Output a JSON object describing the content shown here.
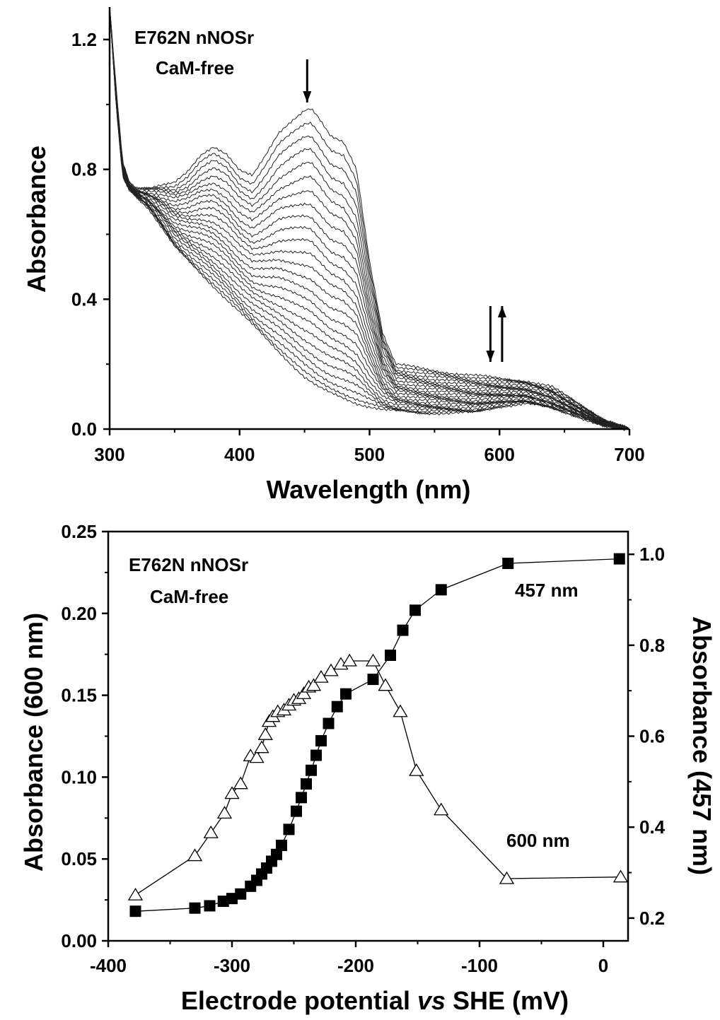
{
  "chart_data": [
    {
      "type": "line",
      "panel": "top",
      "xlabel": "Wavelength (nm)",
      "ylabel": "Absorbance",
      "xlim": [
        300,
        700
      ],
      "ylim": [
        0.0,
        1.3
      ],
      "xticks": [
        "300",
        "400",
        "500",
        "600",
        "700"
      ],
      "yticks": [
        "0.0",
        "0.4",
        "0.8",
        "1.2"
      ],
      "annotations": [
        "E762N nNOSr",
        "CaM-free"
      ],
      "arrows": [
        {
          "x": 452,
          "direction": "down"
        },
        {
          "x": 593,
          "direction": "down"
        },
        {
          "x": 602,
          "direction": "up"
        }
      ],
      "series_count": 25,
      "fully_oxidized_spectrum": {
        "x": [
          300,
          305,
          310,
          315,
          320,
          330,
          340,
          350,
          360,
          370,
          380,
          390,
          400,
          410,
          420,
          430,
          440,
          450,
          455,
          460,
          470,
          480,
          490,
          500,
          510,
          520,
          540,
          560,
          580,
          600,
          620,
          640,
          660,
          680,
          700
        ],
        "y": [
          1.3,
          1.05,
          0.82,
          0.76,
          0.74,
          0.745,
          0.755,
          0.76,
          0.79,
          0.84,
          0.87,
          0.85,
          0.8,
          0.78,
          0.84,
          0.91,
          0.95,
          0.985,
          0.99,
          0.965,
          0.9,
          0.88,
          0.8,
          0.52,
          0.3,
          0.2,
          0.185,
          0.175,
          0.165,
          0.155,
          0.15,
          0.13,
          0.08,
          0.03,
          0.0
        ]
      },
      "fully_reduced_spectrum": {
        "x": [
          300,
          305,
          310,
          315,
          320,
          330,
          340,
          350,
          360,
          370,
          380,
          390,
          400,
          410,
          420,
          430,
          440,
          450,
          460,
          470,
          480,
          490,
          500,
          510,
          520,
          540,
          560,
          580,
          600,
          620,
          640,
          660,
          680,
          700
        ],
        "y": [
          1.3,
          1.0,
          0.78,
          0.74,
          0.72,
          0.68,
          0.62,
          0.56,
          0.52,
          0.48,
          0.44,
          0.4,
          0.36,
          0.32,
          0.28,
          0.24,
          0.2,
          0.16,
          0.13,
          0.11,
          0.095,
          0.08,
          0.07,
          0.06,
          0.055,
          0.05,
          0.05,
          0.05,
          0.07,
          0.08,
          0.065,
          0.04,
          0.01,
          0.0
        ]
      }
    },
    {
      "type": "scatter",
      "panel": "bottom",
      "xlabel_parts": [
        "Electrode potential ",
        "vs",
        " SHE (mV)"
      ],
      "ylabel_left": "Absorbance (600 nm)",
      "ylabel_right": "Absorbance (457 nm)",
      "xlim": [
        -400,
        20
      ],
      "ylim_left": [
        0.0,
        0.25
      ],
      "ylim_right": [
        0.15,
        1.05
      ],
      "xticks": [
        "-400",
        "-300",
        "-200",
        "-100",
        "0"
      ],
      "yticks_left": [
        "0.00",
        "0.05",
        "0.10",
        "0.15",
        "0.20",
        "0.25"
      ],
      "yticks_right": [
        "0.2",
        "0.4",
        "0.6",
        "0.8",
        "1.0"
      ],
      "annotations": [
        "E762N nNOSr",
        "CaM-free"
      ],
      "series": [
        {
          "name": "457 nm",
          "marker": "filled-square",
          "axis": "right",
          "x": [
            -378,
            -330,
            -318,
            -307,
            -300,
            -293,
            -285,
            -280,
            -276,
            -272,
            -268,
            -264,
            -260,
            -254,
            -248,
            -244,
            -240,
            -236,
            -232,
            -228,
            -222,
            -215,
            -208,
            -186,
            -172,
            -162,
            -152,
            -131,
            -77,
            13
          ],
          "y": [
            0.215,
            0.222,
            0.227,
            0.237,
            0.243,
            0.253,
            0.27,
            0.283,
            0.297,
            0.31,
            0.325,
            0.34,
            0.36,
            0.395,
            0.435,
            0.465,
            0.495,
            0.525,
            0.558,
            0.59,
            0.628,
            0.665,
            0.693,
            0.725,
            0.778,
            0.833,
            0.877,
            0.922,
            0.98,
            0.99
          ]
        },
        {
          "name": "600 nm",
          "marker": "open-triangle",
          "axis": "left",
          "x": [
            -378,
            -330,
            -317,
            -306,
            -300,
            -293,
            -285,
            -280,
            -276,
            -273,
            -270,
            -267,
            -263,
            -258,
            -254,
            -250,
            -246,
            -242,
            -238,
            -234,
            -228,
            -220,
            -212,
            -205,
            -186,
            -176,
            -164,
            -151,
            -131,
            -78,
            14
          ],
          "y": [
            0.028,
            0.052,
            0.066,
            0.078,
            0.09,
            0.096,
            0.113,
            0.112,
            0.118,
            0.126,
            0.134,
            0.137,
            0.14,
            0.141,
            0.144,
            0.147,
            0.148,
            0.151,
            0.155,
            0.156,
            0.161,
            0.165,
            0.169,
            0.171,
            0.171,
            0.156,
            0.14,
            0.104,
            0.08,
            0.038,
            0.039
          ]
        }
      ]
    }
  ]
}
